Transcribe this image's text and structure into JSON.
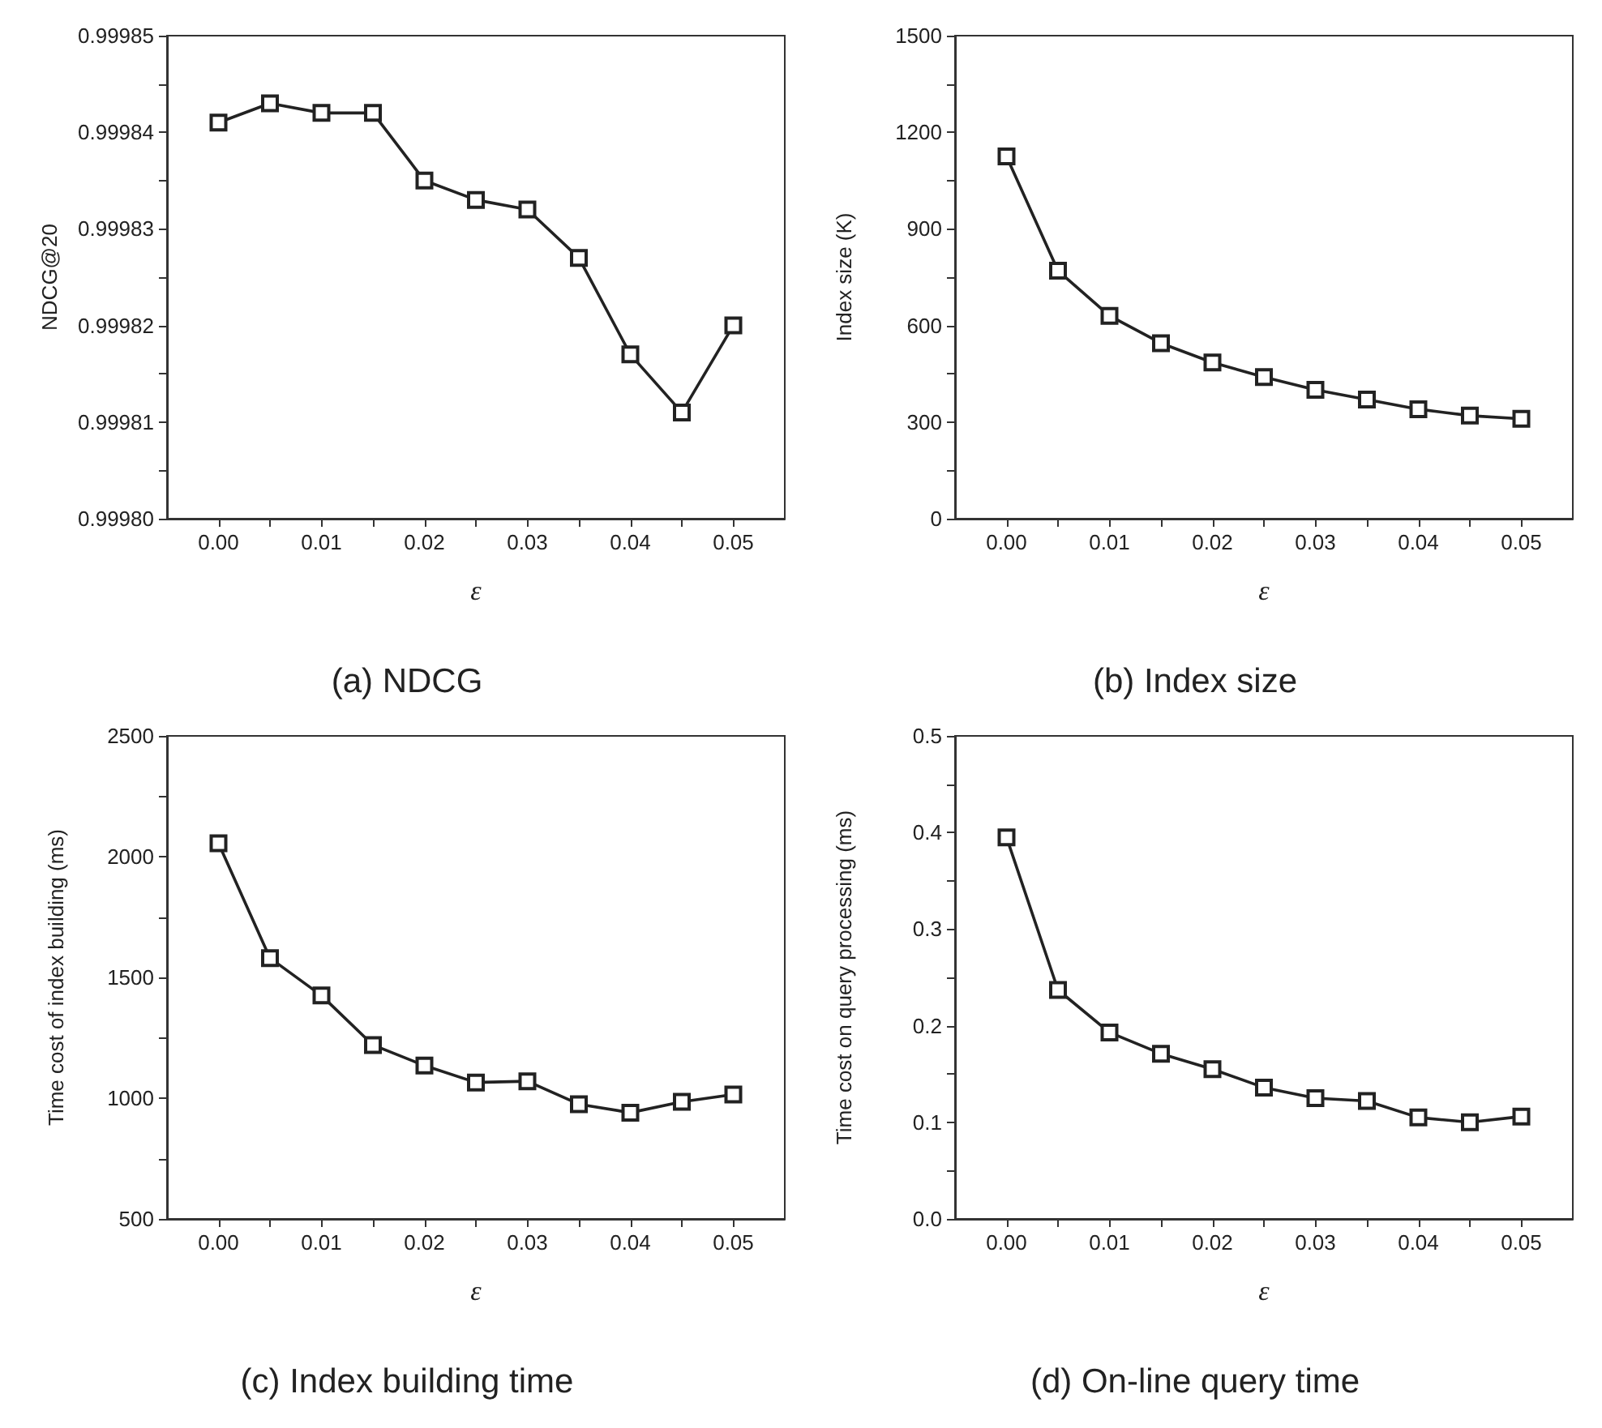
{
  "chart_data": [
    {
      "type": "line",
      "title": "(a) NDCG",
      "xlabel": "ε",
      "ylabel": "NDCG@20",
      "marker": "square",
      "line_style": "solid",
      "x": [
        0,
        0.005,
        0.01,
        0.015,
        0.02,
        0.025,
        0.03,
        0.035,
        0.04,
        0.045,
        0.05
      ],
      "series": [
        {
          "color": "#222222",
          "values": [
            0.999841,
            0.999843,
            0.999842,
            0.999842,
            0.999835,
            0.999833,
            0.999832,
            0.999827,
            0.999817,
            0.999811,
            0.99982
          ]
        }
      ],
      "xlim": [
        -0.005,
        0.055
      ],
      "xticks": [
        {
          "value": 0,
          "label": "0.00"
        },
        {
          "value": 0.005,
          "label": null
        },
        {
          "value": 0.01,
          "label": "0.01"
        },
        {
          "value": 0.015,
          "label": null
        },
        {
          "value": 0.02,
          "label": "0.02"
        },
        {
          "value": 0.025,
          "label": null
        },
        {
          "value": 0.03,
          "label": "0.03"
        },
        {
          "value": 0.035,
          "label": null
        },
        {
          "value": 0.04,
          "label": "0.04"
        },
        {
          "value": 0.045,
          "label": null
        },
        {
          "value": 0.05,
          "label": "0.05"
        }
      ],
      "ylim": [
        0.9998,
        0.99985
      ],
      "yticks": [
        {
          "value": 0.9998,
          "label": "0.99980"
        },
        {
          "value": 0.999805,
          "label": null
        },
        0.99981,
        {
          "value": 0.999815,
          "label": null
        },
        0.99982,
        {
          "value": 0.999825,
          "label": null
        },
        0.99983,
        {
          "value": 0.999835,
          "label": null
        },
        0.99984,
        {
          "value": 0.999845,
          "label": null
        },
        0.99985
      ]
    },
    {
      "type": "line",
      "title": "(b) Index size",
      "xlabel": "ε",
      "ylabel": "Index size (K)",
      "marker": "square",
      "line_style": "solid",
      "x": [
        0,
        0.005,
        0.01,
        0.015,
        0.02,
        0.025,
        0.03,
        0.035,
        0.04,
        0.045,
        0.05
      ],
      "series": [
        {
          "color": "#222222",
          "values": [
            1125,
            770,
            630,
            545,
            485,
            440,
            400,
            370,
            340,
            320,
            310
          ]
        }
      ],
      "xlim": [
        -0.005,
        0.055
      ],
      "xticks": [
        {
          "value": 0,
          "label": "0.00"
        },
        {
          "value": 0.005,
          "label": null
        },
        {
          "value": 0.01,
          "label": "0.01"
        },
        {
          "value": 0.015,
          "label": null
        },
        {
          "value": 0.02,
          "label": "0.02"
        },
        {
          "value": 0.025,
          "label": null
        },
        {
          "value": 0.03,
          "label": "0.03"
        },
        {
          "value": 0.035,
          "label": null
        },
        {
          "value": 0.04,
          "label": "0.04"
        },
        {
          "value": 0.045,
          "label": null
        },
        {
          "value": 0.05,
          "label": "0.05"
        }
      ],
      "ylim": [
        0,
        1500
      ],
      "yticks": [
        0,
        {
          "value": 150,
          "label": null
        },
        300,
        {
          "value": 450,
          "label": null
        },
        600,
        {
          "value": 750,
          "label": null
        },
        900,
        {
          "value": 1050,
          "label": null
        },
        1200,
        {
          "value": 1350,
          "label": null
        },
        1500
      ]
    },
    {
      "type": "line",
      "title": "(c) Index building time",
      "xlabel": "ε",
      "ylabel": "Time cost of index building (ms)",
      "marker": "square",
      "line_style": "solid",
      "x": [
        0,
        0.005,
        0.01,
        0.015,
        0.02,
        0.025,
        0.03,
        0.035,
        0.04,
        0.045,
        0.05
      ],
      "series": [
        {
          "color": "#222222",
          "values": [
            2055,
            1580,
            1425,
            1220,
            1135,
            1065,
            1070,
            975,
            940,
            985,
            1015
          ]
        }
      ],
      "xlim": [
        -0.005,
        0.055
      ],
      "xticks": [
        {
          "value": 0,
          "label": "0.00"
        },
        {
          "value": 0.005,
          "label": null
        },
        {
          "value": 0.01,
          "label": "0.01"
        },
        {
          "value": 0.015,
          "label": null
        },
        {
          "value": 0.02,
          "label": "0.02"
        },
        {
          "value": 0.025,
          "label": null
        },
        {
          "value": 0.03,
          "label": "0.03"
        },
        {
          "value": 0.035,
          "label": null
        },
        {
          "value": 0.04,
          "label": "0.04"
        },
        {
          "value": 0.045,
          "label": null
        },
        {
          "value": 0.05,
          "label": "0.05"
        }
      ],
      "ylim": [
        500,
        2500
      ],
      "yticks": [
        500,
        {
          "value": 750,
          "label": null
        },
        1000,
        {
          "value": 1250,
          "label": null
        },
        1500,
        {
          "value": 1750,
          "label": null
        },
        2000,
        {
          "value": 2250,
          "label": null
        },
        2500
      ]
    },
    {
      "type": "line",
      "title": "(d) On-line query time",
      "xlabel": "ε",
      "ylabel": "Time cost on query processing (ms)",
      "marker": "square",
      "line_style": "solid",
      "x": [
        0,
        0.005,
        0.01,
        0.015,
        0.02,
        0.025,
        0.03,
        0.035,
        0.04,
        0.045,
        0.05
      ],
      "series": [
        {
          "color": "#222222",
          "values": [
            0.395,
            0.237,
            0.193,
            0.171,
            0.155,
            0.136,
            0.125,
            0.122,
            0.105,
            0.1,
            0.106
          ]
        }
      ],
      "xlim": [
        -0.005,
        0.055
      ],
      "xticks": [
        {
          "value": 0,
          "label": "0.00"
        },
        {
          "value": 0.005,
          "label": null
        },
        {
          "value": 0.01,
          "label": "0.01"
        },
        {
          "value": 0.015,
          "label": null
        },
        {
          "value": 0.02,
          "label": "0.02"
        },
        {
          "value": 0.025,
          "label": null
        },
        {
          "value": 0.03,
          "label": "0.03"
        },
        {
          "value": 0.035,
          "label": null
        },
        {
          "value": 0.04,
          "label": "0.04"
        },
        {
          "value": 0.045,
          "label": null
        },
        {
          "value": 0.05,
          "label": "0.05"
        }
      ],
      "ylim": [
        0,
        0.5
      ],
      "yticks": [
        {
          "value": 0,
          "label": "0.0"
        },
        {
          "value": 0.05,
          "label": null
        },
        0.1,
        {
          "value": 0.15,
          "label": null
        },
        0.2,
        {
          "value": 0.25,
          "label": null
        },
        0.3,
        {
          "value": 0.35,
          "label": null
        },
        0.4,
        {
          "value": 0.45,
          "label": null
        },
        0.5
      ]
    }
  ]
}
